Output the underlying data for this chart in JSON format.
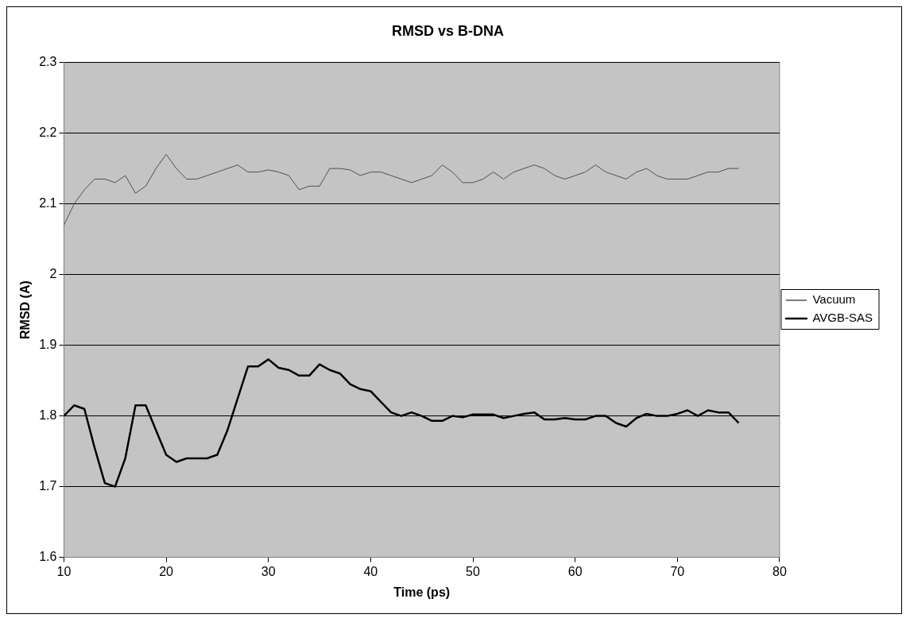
{
  "chart_data": {
    "type": "line",
    "title": "RMSD vs B-DNA",
    "xlabel": "Time (ps)",
    "ylabel": "RMSD (A)",
    "x": [
      10,
      11,
      12,
      13,
      14,
      15,
      16,
      17,
      18,
      19,
      20,
      21,
      22,
      23,
      24,
      25,
      26,
      27,
      28,
      29,
      30,
      31,
      32,
      33,
      34,
      35,
      36,
      37,
      38,
      39,
      40,
      41,
      42,
      43,
      44,
      45,
      46,
      47,
      48,
      49,
      50,
      51,
      52,
      53,
      54,
      55,
      56,
      57,
      58,
      59,
      60,
      61,
      62,
      63,
      64,
      65,
      66,
      67,
      68,
      69,
      70,
      71,
      72,
      73,
      74,
      75,
      76
    ],
    "series": [
      {
        "name": "Vacuum",
        "color": "#505050",
        "values": [
          2.07,
          2.1,
          2.12,
          2.135,
          2.135,
          2.13,
          2.14,
          2.115,
          2.125,
          2.15,
          2.17,
          2.15,
          2.135,
          2.135,
          2.14,
          2.145,
          2.15,
          2.155,
          2.145,
          2.145,
          2.148,
          2.145,
          2.14,
          2.12,
          2.125,
          2.125,
          2.15,
          2.15,
          2.148,
          2.14,
          2.145,
          2.145,
          2.14,
          2.135,
          2.13,
          2.135,
          2.14,
          2.155,
          2.145,
          2.13,
          2.13,
          2.135,
          2.145,
          2.135,
          2.145,
          2.15,
          2.155,
          2.15,
          2.14,
          2.135,
          2.14,
          2.145,
          2.155,
          2.145,
          2.14,
          2.135,
          2.145,
          2.15,
          2.14,
          2.135,
          2.135,
          2.135,
          2.14,
          2.145,
          2.145,
          2.15,
          2.15
        ]
      },
      {
        "name": "AVGB-SAS",
        "color": "#000000",
        "values": [
          1.8,
          1.815,
          1.81,
          1.755,
          1.705,
          1.7,
          1.74,
          1.815,
          1.815,
          1.78,
          1.745,
          1.735,
          1.74,
          1.74,
          1.74,
          1.745,
          1.78,
          1.825,
          1.87,
          1.87,
          1.88,
          1.868,
          1.865,
          1.857,
          1.857,
          1.873,
          1.865,
          1.86,
          1.845,
          1.838,
          1.835,
          1.82,
          1.805,
          1.8,
          1.805,
          1.8,
          1.793,
          1.793,
          1.8,
          1.798,
          1.802,
          1.802,
          1.802,
          1.797,
          1.8,
          1.803,
          1.805,
          1.795,
          1.795,
          1.797,
          1.795,
          1.795,
          1.8,
          1.8,
          1.79,
          1.785,
          1.797,
          1.803,
          1.8,
          1.8,
          1.803,
          1.808,
          1.8,
          1.808,
          1.805,
          1.805,
          1.79
        ]
      }
    ],
    "xlim": [
      10,
      80
    ],
    "xticks": [
      10,
      20,
      30,
      40,
      50,
      60,
      70,
      80
    ],
    "ylim": [
      1.6,
      2.3
    ],
    "yticks": [
      1.6,
      1.7,
      1.8,
      1.9,
      2,
      2.1,
      2.2,
      2.3
    ],
    "grid": "y",
    "legend": "right",
    "marker": "none",
    "line_style": "solid"
  }
}
